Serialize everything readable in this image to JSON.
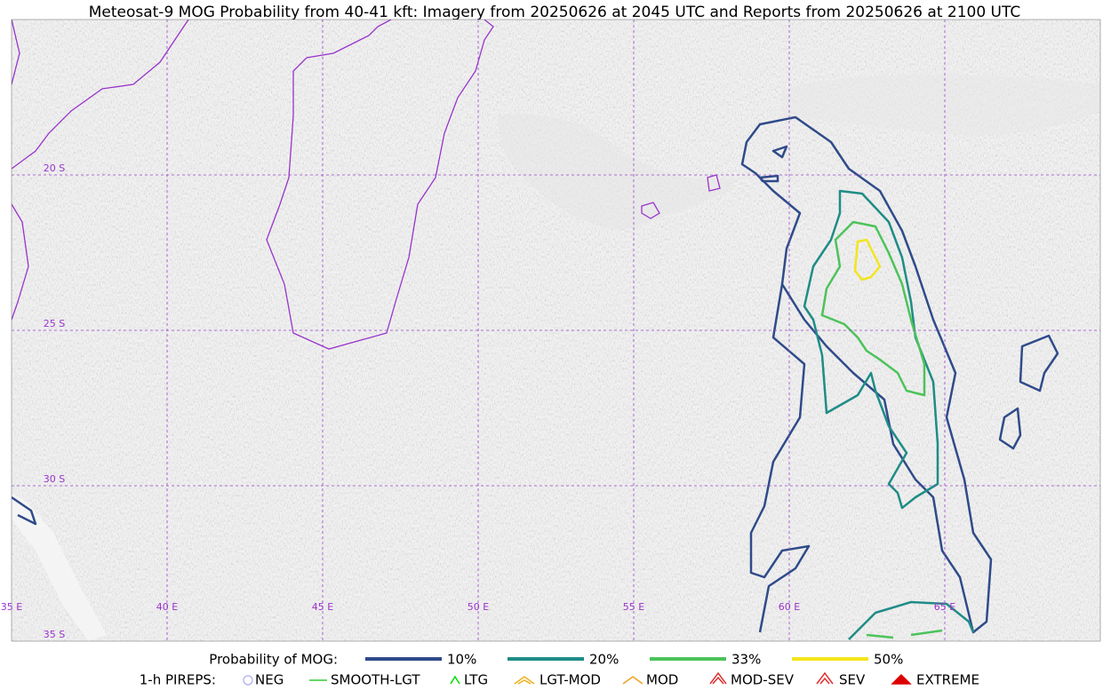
{
  "map": {
    "title": "Meteosat-9 MOG Probability from 40-41 kft: Imagery from 20250626 at 2045 UTC and Reports from 20250626 at 2100 UTC",
    "longitudes": [
      "35 E",
      "40 E",
      "45 E",
      "50 E",
      "55 E",
      "60 E",
      "65 E"
    ],
    "latitudes": [
      "20 S",
      "25 S",
      "30 S",
      "35 S"
    ]
  },
  "legend": {
    "probability": {
      "title": "Probability of MOG:",
      "items": [
        {
          "label": "10%",
          "color": "#2f4b8a"
        },
        {
          "label": "20%",
          "color": "#1f8c86"
        },
        {
          "label": "33%",
          "color": "#4cc35a"
        },
        {
          "label": "50%",
          "color": "#f3e51c"
        }
      ]
    },
    "pireps": {
      "title": "1-h PIREPS:",
      "items": [
        {
          "label": "NEG",
          "color": "#b8b8f0"
        },
        {
          "label": "SMOOTH-LGT",
          "color": "#33cc33"
        },
        {
          "label": "LTG",
          "color": "#00dd00"
        },
        {
          "label": "LGT-MOD",
          "color": "#f0b020"
        },
        {
          "label": "MOD",
          "color": "#f0a020"
        },
        {
          "label": "MOD-SEV",
          "color": "#e03030"
        },
        {
          "label": "SEV",
          "color": "#e03030"
        },
        {
          "label": "EXTREME",
          "color": "#dd0000"
        }
      ]
    }
  }
}
